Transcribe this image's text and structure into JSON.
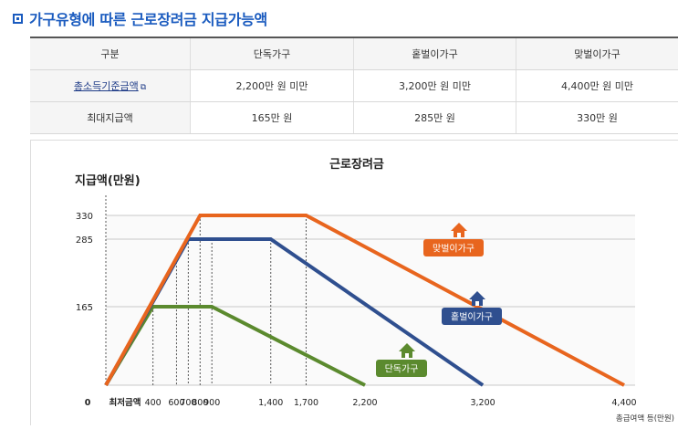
{
  "page": {
    "title": "가구유형에 따른 근로장려금 지급가능액"
  },
  "table": {
    "headers": [
      "구분",
      "단독가구",
      "홑벌이가구",
      "맞벌이가구"
    ],
    "rows": [
      {
        "label": "총소득기준금액",
        "values": [
          "2,200만 원 미만",
          "3,200만 원 미만",
          "4,400만 원 미만"
        ]
      },
      {
        "label": "최대지급액",
        "values": [
          "165만 원",
          "285만 원",
          "330만 원"
        ]
      }
    ]
  },
  "chart_data": {
    "type": "line",
    "title": "근로장려금",
    "ylabel": "지급액(만원)",
    "xlabel": "총급여액 등(만원)",
    "y_ticks": [
      "330",
      "285",
      "165"
    ],
    "x_ticks": [
      "0",
      "최저금액",
      "400",
      "600",
      "700",
      "800",
      "900",
      "1,400",
      "1,700",
      "2,200",
      "3,200",
      "4,400"
    ],
    "series": [
      {
        "name": "단독가구",
        "color": "#5b8a2e",
        "points": [
          [
            0,
            0
          ],
          [
            400,
            165
          ],
          [
            900,
            165
          ],
          [
            2200,
            0
          ]
        ]
      },
      {
        "name": "홑벌이가구",
        "color": "#2f4f8f",
        "points": [
          [
            0,
            0
          ],
          [
            700,
            285
          ],
          [
            1400,
            285
          ],
          [
            3200,
            0
          ]
        ]
      },
      {
        "name": "맞벌이가구",
        "color": "#e8651e",
        "points": [
          [
            0,
            0
          ],
          [
            800,
            330
          ],
          [
            1700,
            330
          ],
          [
            4400,
            0
          ]
        ]
      }
    ],
    "ylim": [
      0,
      330
    ],
    "xlim": [
      0,
      4400
    ],
    "grid": true
  }
}
